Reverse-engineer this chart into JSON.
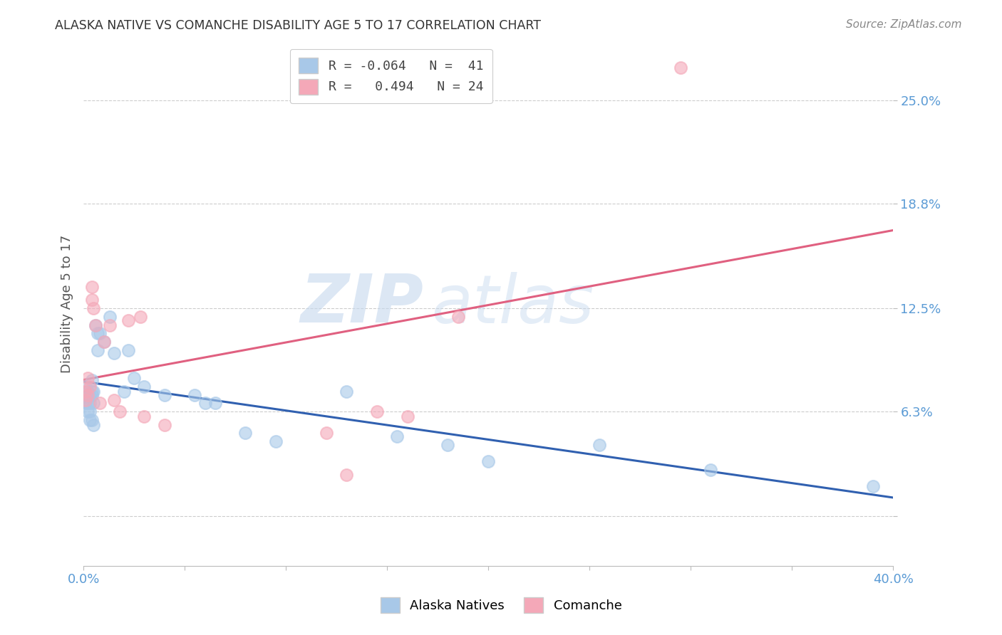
{
  "title": "ALASKA NATIVE VS COMANCHE DISABILITY AGE 5 TO 17 CORRELATION CHART",
  "source": "Source: ZipAtlas.com",
  "ylabel": "Disability Age 5 to 17",
  "xlim": [
    0.0,
    0.4
  ],
  "ylim": [
    -0.03,
    0.285
  ],
  "ytick_positions": [
    0.0,
    0.063,
    0.125,
    0.188,
    0.25
  ],
  "ytick_labels": [
    "",
    "6.3%",
    "12.5%",
    "18.8%",
    "25.0%"
  ],
  "alaska_x": [
    0.001,
    0.001,
    0.001,
    0.002,
    0.002,
    0.002,
    0.003,
    0.003,
    0.003,
    0.003,
    0.004,
    0.004,
    0.004,
    0.004,
    0.005,
    0.005,
    0.005,
    0.006,
    0.007,
    0.007,
    0.008,
    0.01,
    0.013,
    0.015,
    0.02,
    0.022,
    0.025,
    0.03,
    0.04,
    0.055,
    0.06,
    0.065,
    0.08,
    0.095,
    0.13,
    0.155,
    0.18,
    0.2,
    0.255,
    0.31,
    0.39
  ],
  "alaska_y": [
    0.078,
    0.072,
    0.068,
    0.075,
    0.068,
    0.063,
    0.073,
    0.068,
    0.063,
    0.058,
    0.082,
    0.075,
    0.073,
    0.058,
    0.075,
    0.068,
    0.055,
    0.115,
    0.11,
    0.1,
    0.11,
    0.105,
    0.12,
    0.098,
    0.075,
    0.1,
    0.083,
    0.078,
    0.073,
    0.073,
    0.068,
    0.068,
    0.05,
    0.045,
    0.075,
    0.048,
    0.043,
    0.033,
    0.043,
    0.028,
    0.018
  ],
  "comanche_x": [
    0.001,
    0.001,
    0.002,
    0.002,
    0.003,
    0.004,
    0.004,
    0.005,
    0.006,
    0.008,
    0.01,
    0.013,
    0.015,
    0.018,
    0.022,
    0.028,
    0.03,
    0.04,
    0.12,
    0.13,
    0.145,
    0.16,
    0.185,
    0.295
  ],
  "comanche_y": [
    0.075,
    0.07,
    0.083,
    0.073,
    0.078,
    0.138,
    0.13,
    0.125,
    0.115,
    0.068,
    0.105,
    0.115,
    0.07,
    0.063,
    0.118,
    0.12,
    0.06,
    0.055,
    0.05,
    0.025,
    0.063,
    0.06,
    0.12,
    0.27
  ],
  "alaska_color": "#a8c8e8",
  "comanche_color": "#f4a8b8",
  "alaska_line_color": "#3060b0",
  "comanche_line_color": "#e06080",
  "watermark_zip": "ZIP",
  "watermark_atlas": "atlas",
  "background_color": "#ffffff",
  "grid_color": "#cccccc",
  "legend_alaska_label": "R = -0.064   N =  41",
  "legend_comanche_label": "R =   0.494   N = 24",
  "bottom_alaska_label": "Alaska Natives",
  "bottom_comanche_label": "Comanche"
}
